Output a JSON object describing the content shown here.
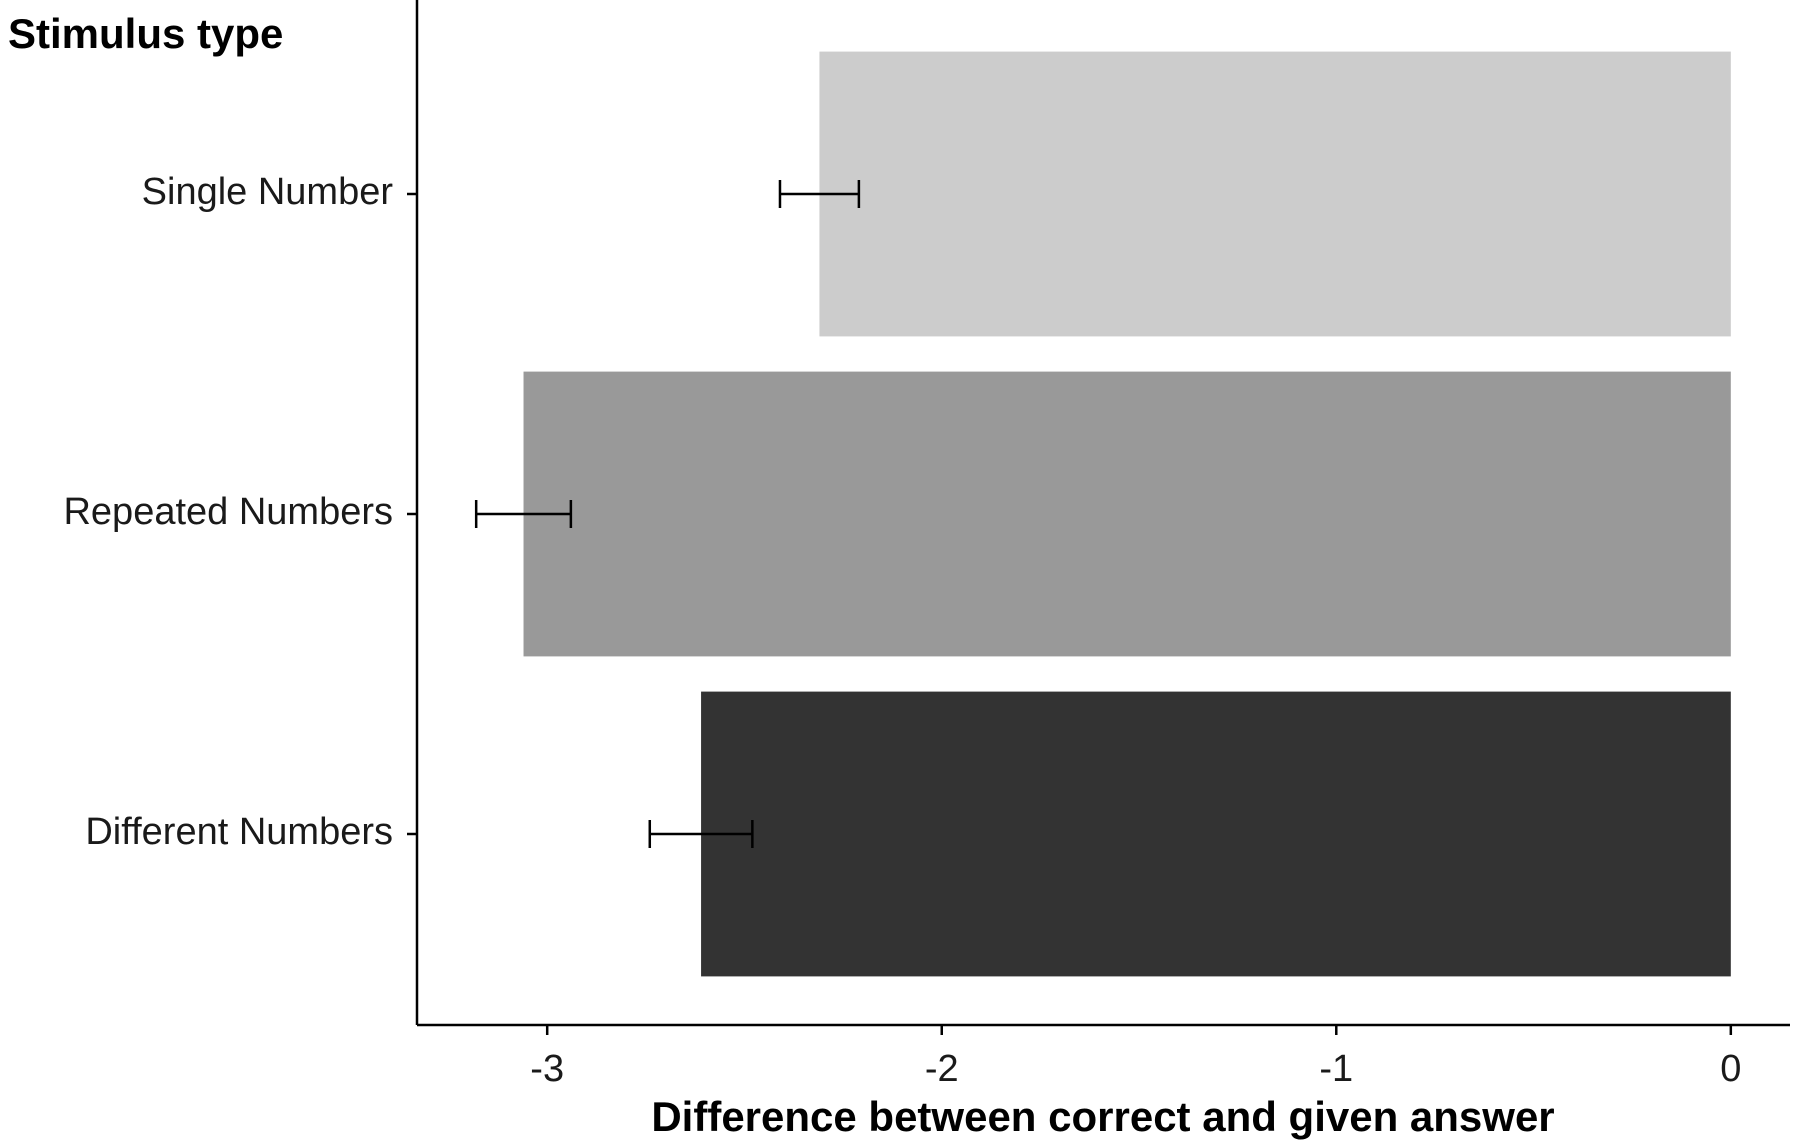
{
  "chart_data": {
    "type": "barh",
    "legend_title": "Stimulus type",
    "xlabel": "Difference between correct and given answer",
    "categories": [
      "Single Number",
      "Repeated Numbers",
      "Different Numbers"
    ],
    "values": [
      -2.31,
      -3.06,
      -2.61
    ],
    "errors": [
      0.1,
      0.12,
      0.13
    ],
    "colors": [
      "#cccccc",
      "#999999",
      "#333333"
    ],
    "xlim": [
      -3.33,
      0.15
    ],
    "xticks": [
      -3,
      -2,
      -1,
      0
    ]
  }
}
